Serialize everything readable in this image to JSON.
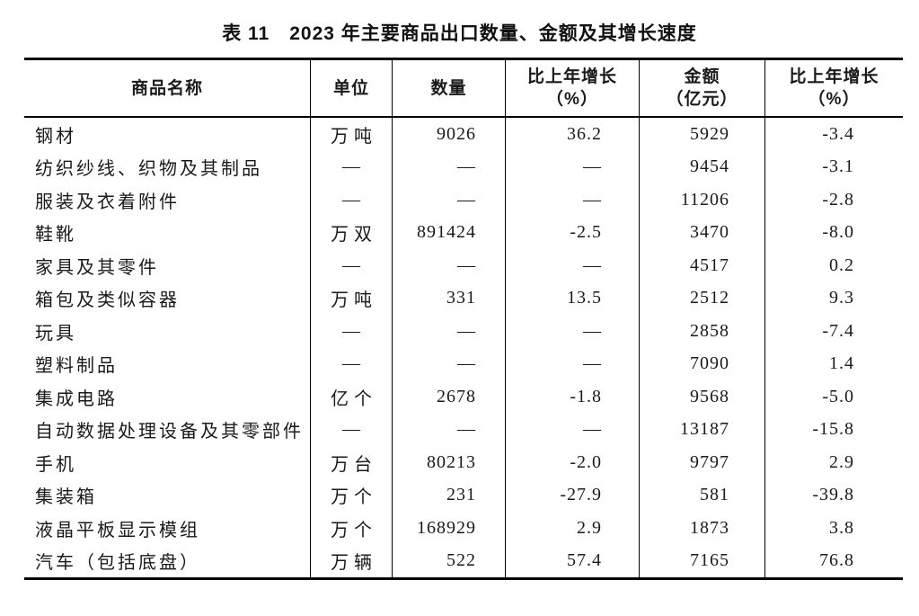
{
  "title": "表 11　2023 年主要商品出口数量、金额及其增长速度",
  "colors": {
    "background": "#ffffff",
    "text": "#1a1a1a",
    "border": "#000000"
  },
  "table": {
    "empty_marker": "—",
    "columns": [
      {
        "key": "name",
        "label": "商品名称",
        "sub": ""
      },
      {
        "key": "unit",
        "label": "单位",
        "sub": ""
      },
      {
        "key": "quantity",
        "label": "数量",
        "sub": ""
      },
      {
        "key": "quantity_growth",
        "label": "比上年增长",
        "sub": "（%）"
      },
      {
        "key": "value",
        "label": "金额",
        "sub": "（亿元）"
      },
      {
        "key": "value_growth",
        "label": "比上年增长",
        "sub": "（%）"
      }
    ],
    "rows": [
      {
        "name": "钢材",
        "unit": "万吨",
        "quantity": "9026",
        "quantity_growth": "36.2",
        "value": "5929",
        "value_growth": "-3.4"
      },
      {
        "name": "纺织纱线、织物及其制品",
        "unit": "—",
        "quantity": "—",
        "quantity_growth": "—",
        "value": "9454",
        "value_growth": "-3.1"
      },
      {
        "name": "服装及衣着附件",
        "unit": "—",
        "quantity": "—",
        "quantity_growth": "—",
        "value": "11206",
        "value_growth": "-2.8"
      },
      {
        "name": "鞋靴",
        "unit": "万双",
        "quantity": "891424",
        "quantity_growth": "-2.5",
        "value": "3470",
        "value_growth": "-8.0"
      },
      {
        "name": "家具及其零件",
        "unit": "—",
        "quantity": "—",
        "quantity_growth": "—",
        "value": "4517",
        "value_growth": "0.2"
      },
      {
        "name": "箱包及类似容器",
        "unit": "万吨",
        "quantity": "331",
        "quantity_growth": "13.5",
        "value": "2512",
        "value_growth": "9.3"
      },
      {
        "name": "玩具",
        "unit": "—",
        "quantity": "—",
        "quantity_growth": "—",
        "value": "2858",
        "value_growth": "-7.4"
      },
      {
        "name": "塑料制品",
        "unit": "—",
        "quantity": "—",
        "quantity_growth": "—",
        "value": "7090",
        "value_growth": "1.4"
      },
      {
        "name": "集成电路",
        "unit": "亿个",
        "quantity": "2678",
        "quantity_growth": "-1.8",
        "value": "9568",
        "value_growth": "-5.0"
      },
      {
        "name": "自动数据处理设备及其零部件",
        "unit": "—",
        "quantity": "—",
        "quantity_growth": "—",
        "value": "13187",
        "value_growth": "-15.8"
      },
      {
        "name": "手机",
        "unit": "万台",
        "quantity": "80213",
        "quantity_growth": "-2.0",
        "value": "9797",
        "value_growth": "2.9"
      },
      {
        "name": "集装箱",
        "unit": "万个",
        "quantity": "231",
        "quantity_growth": "-27.9",
        "value": "581",
        "value_growth": "-39.8"
      },
      {
        "name": "液晶平板显示模组",
        "unit": "万个",
        "quantity": "168929",
        "quantity_growth": "2.9",
        "value": "1873",
        "value_growth": "3.8"
      },
      {
        "name": "汽车（包括底盘）",
        "unit": "万辆",
        "quantity": "522",
        "quantity_growth": "57.4",
        "value": "7165",
        "value_growth": "76.8"
      }
    ]
  }
}
